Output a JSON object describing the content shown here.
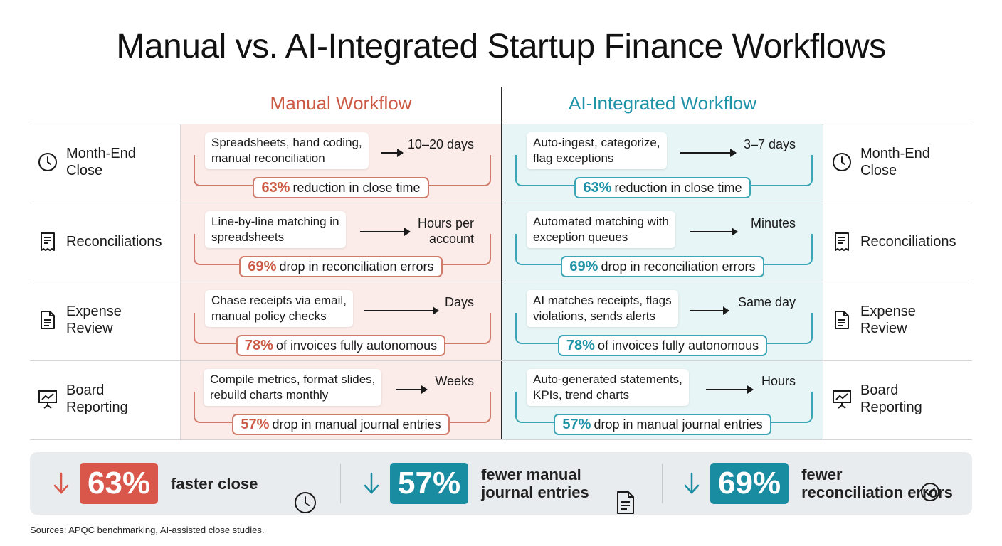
{
  "title": "Manual vs. AI-Integrated Startup Finance Workflows",
  "columns": {
    "manual": "Manual Workflow",
    "ai": "AI-Integrated Workflow"
  },
  "colors": {
    "manual_accent": "#cc5a45",
    "ai_accent": "#1f93a8",
    "manual_bg": "#fcece9",
    "ai_bg": "#e7f5f6"
  },
  "rows": [
    {
      "label_line1": "Month-End",
      "label_line2": "Close",
      "icon": "clock-icon",
      "manual": {
        "desc1": "Spreadsheets, hand coding,",
        "desc2": "manual reconciliation",
        "result1": "10–20 days",
        "result2": "",
        "pct": "63%",
        "stat": "reduction in close time"
      },
      "ai": {
        "desc1": "Auto-ingest, categorize,",
        "desc2": "flag exceptions",
        "result1": "3–7 days",
        "result2": "",
        "pct": "63%",
        "stat": "reduction in close time"
      }
    },
    {
      "label_line1": "Reconciliations",
      "label_line2": "",
      "icon": "receipt-icon",
      "manual": {
        "desc1": "Line-by-line matching in",
        "desc2": "spreadsheets",
        "result1": "Hours per",
        "result2": "account",
        "pct": "69%",
        "stat": "drop in reconciliation errors"
      },
      "ai": {
        "desc1": "Automated matching with",
        "desc2": "exception queues",
        "result1": "Minutes",
        "result2": "",
        "pct": "69%",
        "stat": "drop in reconciliation errors"
      }
    },
    {
      "label_line1": "Expense",
      "label_line2": "Review",
      "icon": "document-icon",
      "manual": {
        "desc1": "Chase receipts via email,",
        "desc2": "manual policy checks",
        "result1": "Days",
        "result2": "",
        "pct": "78%",
        "stat": "of invoices fully autonomous"
      },
      "ai": {
        "desc1": "AI matches receipts, flags",
        "desc2": "violations, sends alerts",
        "result1": "Same day",
        "result2": "",
        "pct": "78%",
        "stat": "of invoices fully autonomous"
      }
    },
    {
      "label_line1": "Board",
      "label_line2": "Reporting",
      "icon": "presentation-chart-icon",
      "manual": {
        "desc1": "Compile metrics, format slides,",
        "desc2": "rebuild charts monthly",
        "result1": "Weeks",
        "result2": "",
        "pct": "57%",
        "stat": "drop in manual journal entries"
      },
      "ai": {
        "desc1": "Auto-generated statements,",
        "desc2": "KPIs, trend charts",
        "result1": "Hours",
        "result2": "",
        "pct": "57%",
        "stat": "drop in manual journal entries"
      }
    }
  ],
  "summary": [
    {
      "value": "63%",
      "text_line1": "faster close",
      "text_line2": "",
      "color": "#d9574a",
      "icon": "clock-icon"
    },
    {
      "value": "57%",
      "text_line1": "fewer manual",
      "text_line2": "journal entries",
      "color": "#1a8ca1",
      "icon": "document-icon"
    },
    {
      "value": "69%",
      "text_line1": "fewer",
      "text_line2": "reconciliation errors",
      "color": "#1a8ca1",
      "icon": "check-circle-icon"
    }
  ],
  "sources": "Sources: APQC benchmarking, AI-assisted close studies."
}
